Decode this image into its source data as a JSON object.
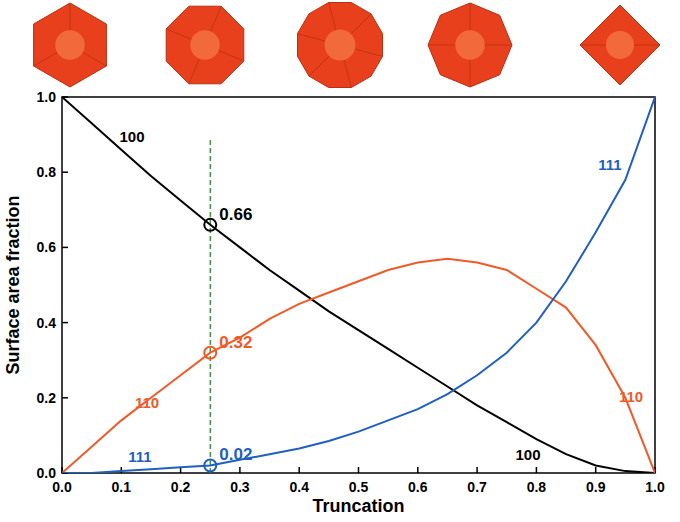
{
  "chart_data": {
    "type": "line",
    "xlabel": "Truncation",
    "ylabel": "Surface area fraction",
    "x": [
      0,
      0.05,
      0.1,
      0.15,
      0.2,
      0.25,
      0.3,
      0.35,
      0.4,
      0.45,
      0.5,
      0.55,
      0.6,
      0.65,
      0.7,
      0.75,
      0.8,
      0.85,
      0.9,
      0.95,
      1.0
    ],
    "series": [
      {
        "name": "100",
        "color": "#000000",
        "values": [
          1.0,
          0.93,
          0.86,
          0.79,
          0.725,
          0.66,
          0.6,
          0.54,
          0.485,
          0.43,
          0.38,
          0.33,
          0.28,
          0.23,
          0.18,
          0.135,
          0.09,
          0.05,
          0.02,
          0.005,
          0
        ]
      },
      {
        "name": "110",
        "color": "#f05a28",
        "values": [
          0,
          0.07,
          0.14,
          0.2,
          0.26,
          0.32,
          0.36,
          0.41,
          0.45,
          0.48,
          0.51,
          0.54,
          0.56,
          0.57,
          0.56,
          0.54,
          0.49,
          0.44,
          0.34,
          0.2,
          0
        ]
      },
      {
        "name": "111",
        "color": "#1f5fbf",
        "values": [
          0,
          0.0,
          0.005,
          0.01,
          0.015,
          0.02,
          0.035,
          0.05,
          0.065,
          0.085,
          0.11,
          0.14,
          0.17,
          0.21,
          0.26,
          0.32,
          0.4,
          0.51,
          0.64,
          0.78,
          1.0
        ]
      }
    ],
    "annotations": [
      {
        "x": 0.25,
        "y": 0.66,
        "text": "0.66",
        "series": "100"
      },
      {
        "x": 0.25,
        "y": 0.32,
        "text": "0.32",
        "series": "110"
      },
      {
        "x": 0.25,
        "y": 0.02,
        "text": "0.02",
        "series": "111"
      }
    ],
    "xlim": [
      0,
      1
    ],
    "ylim": [
      0,
      1
    ],
    "xticks": [
      {
        "value": 0,
        "label": "0.0"
      },
      0.1,
      0.2,
      0.3,
      0.4,
      0.5,
      0.6,
      0.7,
      0.8,
      0.9,
      {
        "value": 1,
        "label": "1.0"
      }
    ],
    "yticks": [
      {
        "value": 0,
        "label": "0.0"
      },
      0.2,
      0.4,
      0.6,
      0.8,
      {
        "value": 1,
        "label": "1.0"
      }
    ],
    "grid": false,
    "marker": "none",
    "line_style": "solid"
  }
}
